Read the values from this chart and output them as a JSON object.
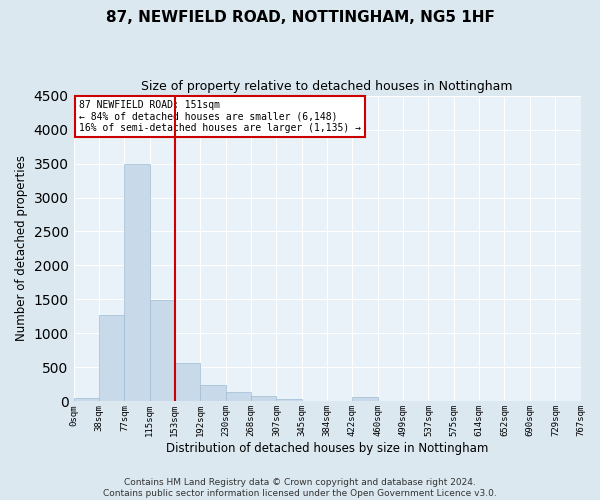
{
  "title": "87, NEWFIELD ROAD, NOTTINGHAM, NG5 1HF",
  "subtitle": "Size of property relative to detached houses in Nottingham",
  "xlabel": "Distribution of detached houses by size in Nottingham",
  "ylabel": "Number of detached properties",
  "bin_edges": [
    0,
    38,
    77,
    115,
    153,
    192,
    230,
    268,
    307,
    345,
    384,
    422,
    460,
    499,
    537,
    575,
    614,
    652,
    690,
    729,
    767
  ],
  "bar_heights": [
    50,
    1270,
    3500,
    1490,
    570,
    240,
    140,
    80,
    30,
    10,
    5,
    60,
    5,
    0,
    0,
    0,
    0,
    0,
    0,
    0
  ],
  "bar_color": "#c8daea",
  "bar_edge_color": "#a0bcd4",
  "vline_color": "#cc0000",
  "vline_x": 153,
  "annotation_title": "87 NEWFIELD ROAD: 151sqm",
  "annotation_line1": "← 84% of detached houses are smaller (6,148)",
  "annotation_line2": "16% of semi-detached houses are larger (1,135) →",
  "annotation_box_color": "#ffffff",
  "annotation_box_edge_color": "#cc0000",
  "ylim": [
    0,
    4500
  ],
  "tick_labels": [
    "0sqm",
    "38sqm",
    "77sqm",
    "115sqm",
    "153sqm",
    "192sqm",
    "230sqm",
    "268sqm",
    "307sqm",
    "345sqm",
    "384sqm",
    "422sqm",
    "460sqm",
    "499sqm",
    "537sqm",
    "575sqm",
    "614sqm",
    "652sqm",
    "690sqm",
    "729sqm",
    "767sqm"
  ],
  "footer_line1": "Contains HM Land Registry data © Crown copyright and database right 2024.",
  "footer_line2": "Contains public sector information licensed under the Open Government Licence v3.0.",
  "background_color": "#dce8f0",
  "plot_background_color": "#e8f2f8",
  "grid_color": "#ffffff",
  "title_fontsize": 11,
  "subtitle_fontsize": 9,
  "axis_label_fontsize": 8.5,
  "tick_fontsize": 6.5,
  "footer_fontsize": 6.5
}
